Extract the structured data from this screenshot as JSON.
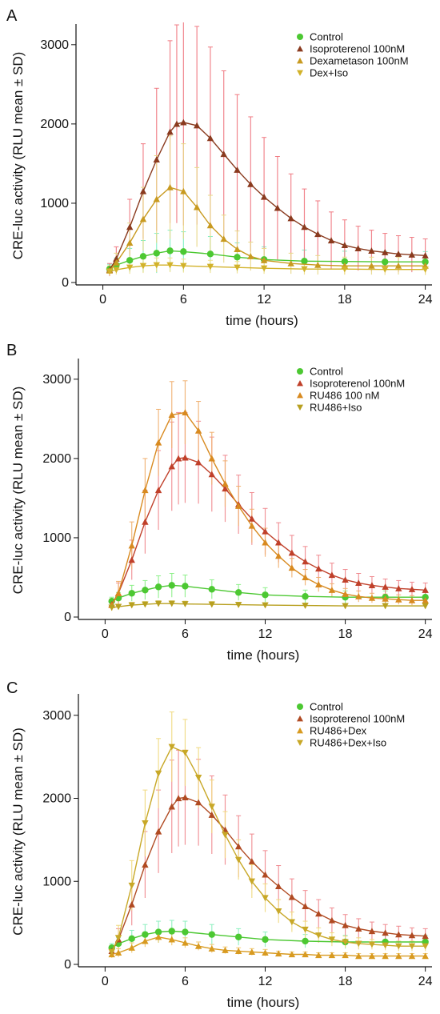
{
  "chart_data": [
    {
      "panel": "A",
      "type": "line",
      "xlabel": "time (hours)",
      "ylabel": "CRE-luc activity (RLU mean ± SD)",
      "xlim": [
        -2,
        24.5
      ],
      "ylim": [
        0,
        3200
      ],
      "xticks": [
        0,
        6,
        12,
        18,
        24
      ],
      "yticks": [
        0,
        1000,
        2000,
        3000
      ],
      "legend_position": "top-right",
      "series": [
        {
          "name": "Control",
          "marker": "circle",
          "color": "#4cc832",
          "errcolor": "#7df0c4",
          "x": [
            0.5,
            1,
            2,
            3,
            4,
            5,
            6,
            8,
            10,
            12,
            15,
            18,
            21,
            24
          ],
          "y": [
            170,
            220,
            280,
            330,
            370,
            400,
            390,
            360,
            320,
            290,
            270,
            265,
            260,
            260
          ],
          "sd": [
            60,
            90,
            150,
            200,
            250,
            260,
            250,
            220,
            180,
            160,
            140,
            130,
            130,
            130
          ]
        },
        {
          "name": "Isoproterenol 100nM",
          "marker": "triangle-up",
          "color": "#8a3a1e",
          "errcolor": "#f07a82",
          "x": [
            0.5,
            1,
            2,
            3,
            4,
            5,
            5.5,
            6,
            7,
            8,
            9,
            10,
            11,
            12,
            13,
            14,
            15,
            16,
            17,
            18,
            19,
            20,
            21,
            22,
            23,
            24
          ],
          "y": [
            160,
            300,
            700,
            1150,
            1550,
            1900,
            2000,
            2020,
            1980,
            1820,
            1620,
            1420,
            1240,
            1080,
            940,
            810,
            700,
            610,
            530,
            470,
            430,
            400,
            380,
            360,
            350,
            340
          ],
          "sd": [
            80,
            150,
            350,
            600,
            900,
            1150,
            1250,
            1300,
            1250,
            1150,
            1050,
            950,
            850,
            750,
            650,
            560,
            480,
            420,
            360,
            320,
            280,
            260,
            240,
            230,
            220,
            210
          ]
        },
        {
          "name": "Dexametason 100nM",
          "marker": "triangle-up",
          "color": "#c89a20",
          "errcolor": "#e8d888",
          "x": [
            0.5,
            1,
            2,
            3,
            4,
            5,
            6,
            7,
            8,
            9,
            10,
            11,
            12,
            14,
            16,
            18,
            20,
            22,
            24
          ],
          "y": [
            150,
            250,
            500,
            800,
            1050,
            1200,
            1150,
            950,
            720,
            550,
            420,
            330,
            280,
            240,
            220,
            210,
            210,
            210,
            210
          ],
          "sd": [
            60,
            120,
            250,
            400,
            550,
            650,
            600,
            500,
            380,
            300,
            230,
            180,
            150,
            130,
            120,
            110,
            110,
            110,
            110
          ]
        },
        {
          "name": "Dex+Iso",
          "marker": "triangle-down",
          "color": "#d2b22a",
          "errcolor": "#f0de8c",
          "x": [
            0.5,
            1,
            2,
            3,
            4,
            5,
            6,
            8,
            10,
            12,
            15,
            18,
            21,
            24
          ],
          "y": [
            140,
            160,
            190,
            210,
            220,
            220,
            210,
            200,
            190,
            180,
            170,
            170,
            165,
            165
          ],
          "sd": [
            50,
            60,
            80,
            90,
            90,
            90,
            85,
            80,
            75,
            70,
            70,
            70,
            70,
            70
          ]
        }
      ]
    },
    {
      "panel": "B",
      "type": "line",
      "xlabel": "time (hours)",
      "ylabel": "CRE-luc activity (RLU mean ± SD)",
      "xlim": [
        -2,
        24.5
      ],
      "ylim": [
        0,
        3200
      ],
      "xticks": [
        0,
        6,
        12,
        18,
        24
      ],
      "yticks": [
        0,
        1000,
        2000,
        3000
      ],
      "legend_position": "top-right",
      "series": [
        {
          "name": "Control",
          "marker": "circle",
          "color": "#4cc832",
          "errcolor": "#8ef08a",
          "x": [
            0.5,
            1,
            2,
            3,
            4,
            5,
            6,
            8,
            10,
            12,
            15,
            18,
            21,
            24
          ],
          "y": [
            200,
            240,
            300,
            340,
            380,
            400,
            390,
            350,
            310,
            280,
            260,
            250,
            250,
            250
          ],
          "sd": [
            50,
            70,
            100,
            120,
            140,
            150,
            140,
            120,
            100,
            90,
            80,
            80,
            80,
            80
          ]
        },
        {
          "name": "Isoproterenol 100nM",
          "marker": "triangle-up",
          "color": "#c0402a",
          "errcolor": "#f08a90",
          "x": [
            0.5,
            1,
            2,
            3,
            4,
            5,
            5.5,
            6,
            7,
            8,
            9,
            10,
            11,
            12,
            13,
            14,
            15,
            16,
            17,
            18,
            19,
            20,
            21,
            22,
            23,
            24
          ],
          "y": [
            160,
            300,
            720,
            1200,
            1600,
            1900,
            2000,
            2010,
            1950,
            1800,
            1620,
            1420,
            1240,
            1080,
            940,
            810,
            700,
            610,
            530,
            470,
            430,
            400,
            380,
            360,
            350,
            340
          ],
          "sd": [
            70,
            130,
            250,
            400,
            500,
            560,
            580,
            570,
            520,
            470,
            420,
            370,
            330,
            290,
            250,
            220,
            190,
            170,
            150,
            130,
            120,
            110,
            100,
            100,
            90,
            90
          ]
        },
        {
          "name": "RU486 100 nM",
          "marker": "triangle-up",
          "color": "#d88a20",
          "errcolor": "#f0b070",
          "x": [
            0.5,
            1,
            2,
            3,
            4,
            5,
            6,
            7,
            8,
            9,
            10,
            11,
            12,
            13,
            14,
            15,
            16,
            17,
            18,
            19,
            20,
            21,
            22,
            23,
            24
          ],
          "y": [
            150,
            300,
            900,
            1600,
            2200,
            2550,
            2580,
            2350,
            2000,
            1680,
            1400,
            1150,
            940,
            770,
            620,
            500,
            410,
            340,
            290,
            260,
            240,
            230,
            220,
            210,
            210
          ],
          "sd": [
            70,
            150,
            300,
            400,
            420,
            420,
            400,
            370,
            330,
            290,
            250,
            210,
            180,
            150,
            120,
            100,
            90,
            80,
            70,
            70,
            60,
            60,
            60,
            60,
            60
          ]
        },
        {
          "name": "RU486+Iso",
          "marker": "triangle-down",
          "color": "#b8a020",
          "errcolor": "#e0d070",
          "x": [
            0.5,
            1,
            2,
            3,
            4,
            5,
            6,
            8,
            10,
            12,
            15,
            18,
            21,
            24
          ],
          "y": [
            120,
            130,
            150,
            160,
            170,
            170,
            165,
            160,
            155,
            150,
            145,
            140,
            140,
            140
          ],
          "sd": [
            30,
            30,
            35,
            35,
            35,
            35,
            35,
            35,
            30,
            30,
            30,
            30,
            30,
            30
          ]
        }
      ]
    },
    {
      "panel": "C",
      "type": "line",
      "xlabel": "time (hours)",
      "ylabel": "CRE-luc activity (RLU mean ± SD)",
      "xlim": [
        -2,
        24.5
      ],
      "ylim": [
        0,
        3200
      ],
      "xticks": [
        0,
        6,
        12,
        18,
        24
      ],
      "yticks": [
        0,
        1000,
        2000,
        3000
      ],
      "legend_position": "top-right",
      "series": [
        {
          "name": "Control",
          "marker": "circle",
          "color": "#4cc832",
          "errcolor": "#8ef0c0",
          "x": [
            0.5,
            1,
            2,
            3,
            4,
            5,
            6,
            8,
            10,
            12,
            15,
            18,
            21,
            24
          ],
          "y": [
            200,
            250,
            310,
            360,
            390,
            400,
            390,
            360,
            330,
            300,
            280,
            270,
            270,
            270
          ],
          "sd": [
            50,
            70,
            100,
            120,
            130,
            130,
            130,
            120,
            100,
            90,
            80,
            80,
            80,
            80
          ]
        },
        {
          "name": "Isoproterenol 100nM",
          "marker": "triangle-up",
          "color": "#b04a22",
          "errcolor": "#f08a90",
          "x": [
            0.5,
            1,
            2,
            3,
            4,
            5,
            5.5,
            6,
            7,
            8,
            9,
            10,
            11,
            12,
            13,
            14,
            15,
            16,
            17,
            18,
            19,
            20,
            21,
            22,
            23,
            24
          ],
          "y": [
            160,
            300,
            720,
            1200,
            1600,
            1900,
            2000,
            2010,
            1950,
            1800,
            1620,
            1420,
            1240,
            1080,
            940,
            810,
            700,
            610,
            530,
            470,
            430,
            400,
            380,
            360,
            350,
            340
          ],
          "sd": [
            70,
            130,
            250,
            400,
            500,
            560,
            580,
            570,
            520,
            470,
            420,
            370,
            330,
            290,
            250,
            220,
            190,
            170,
            150,
            130,
            120,
            110,
            100,
            100,
            90,
            90
          ]
        },
        {
          "name": "RU486+Dex",
          "marker": "triangle-up",
          "color": "#d89a20",
          "errcolor": "#f0c870",
          "x": [
            0.5,
            1,
            2,
            3,
            4,
            5,
            6,
            7,
            8,
            9,
            10,
            11,
            12,
            13,
            14,
            15,
            16,
            17,
            18,
            19,
            20,
            21,
            22,
            23,
            24
          ],
          "y": [
            120,
            140,
            200,
            280,
            330,
            300,
            260,
            220,
            190,
            170,
            160,
            150,
            140,
            130,
            120,
            120,
            110,
            110,
            110,
            100,
            100,
            100,
            100,
            100,
            100
          ],
          "sd": [
            40,
            50,
            60,
            70,
            70,
            70,
            60,
            50,
            50,
            40,
            40,
            40,
            40,
            30,
            30,
            30,
            30,
            30,
            30,
            30,
            30,
            30,
            30,
            30,
            30
          ]
        },
        {
          "name": "RU486+Dex+Iso",
          "marker": "triangle-down",
          "color": "#c8a828",
          "errcolor": "#f0da80",
          "x": [
            0.5,
            1,
            2,
            3,
            4,
            5,
            6,
            7,
            8,
            9,
            10,
            11,
            12,
            13,
            14,
            15,
            16,
            17,
            18,
            19,
            20,
            21,
            22,
            23,
            24
          ],
          "y": [
            150,
            320,
            950,
            1700,
            2300,
            2620,
            2550,
            2250,
            1900,
            1560,
            1260,
            1000,
            800,
            640,
            510,
            420,
            350,
            300,
            270,
            250,
            240,
            230,
            220,
            220,
            220
          ],
          "sd": [
            70,
            150,
            300,
            400,
            420,
            420,
            400,
            360,
            320,
            280,
            240,
            200,
            170,
            140,
            120,
            100,
            90,
            80,
            70,
            70,
            60,
            60,
            60,
            60,
            60
          ]
        }
      ]
    }
  ]
}
